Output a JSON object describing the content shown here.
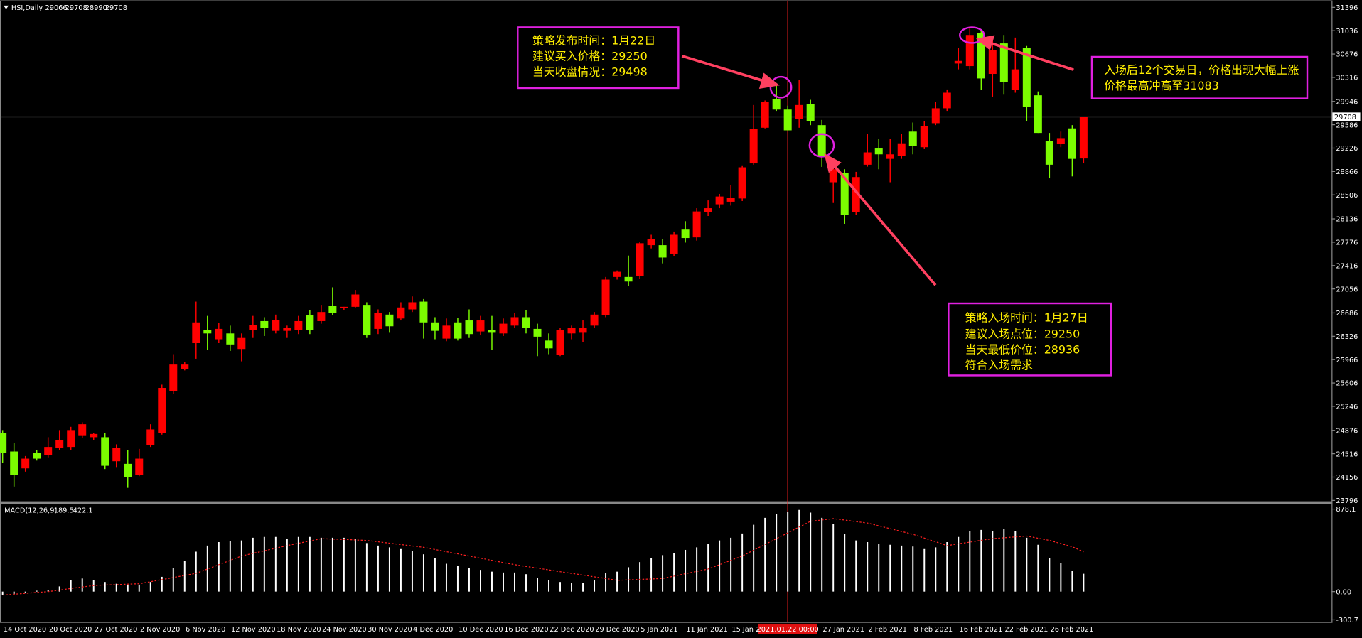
{
  "chart_data": [
    {
      "type": "candlestick",
      "title": "HSI,Daily",
      "categories": [
        "14 Oct 2020",
        null,
        null,
        null,
        "20 Oct 2020",
        null,
        null,
        null,
        "27 Oct 2020",
        null,
        null,
        null,
        "2 Nov 2020",
        null,
        null,
        null,
        "6 Nov 2020",
        null,
        null,
        null,
        "12 Nov 2020",
        null,
        null,
        null,
        "18 Nov 2020",
        null,
        null,
        null,
        "24 Nov 2020",
        null,
        null,
        null,
        "30 Nov 2020",
        null,
        null,
        null,
        "4 Dec 2020",
        null,
        null,
        null,
        "10 Dec 2020",
        null,
        null,
        null,
        "16 Dec 2020",
        null,
        null,
        null,
        "22 Dec 2020",
        null,
        null,
        null,
        "29 Dec 2020",
        null,
        null,
        null,
        "5 Jan 2021",
        null,
        null,
        null,
        "11 Jan 2021",
        null,
        null,
        null,
        "15 Jan 2021",
        null,
        null,
        null,
        null,
        null,
        null,
        null,
        "27 Jan 2021",
        null,
        null,
        null,
        "2 Feb 2021",
        null,
        null,
        null,
        "8 Feb 2021",
        null,
        null,
        null,
        "16 Feb 2021",
        null,
        null,
        null,
        "22 Feb 2021",
        null,
        null,
        null,
        "26 Feb 2021",
        null,
        null,
        null
      ],
      "open": [
        24840,
        24550,
        24290,
        24530,
        24500,
        24600,
        24620,
        24800,
        24770,
        24770,
        24400,
        24360,
        24190,
        24650,
        24840,
        25480,
        25820,
        26220,
        26420,
        26280,
        26370,
        26130,
        26420,
        26560,
        26410,
        26410,
        26420,
        26650,
        26560,
        26800,
        26760,
        26780,
        26810,
        26440,
        26660,
        26600,
        26740,
        26860,
        26540,
        26290,
        26540,
        26570,
        26400,
        26420,
        26370,
        26490,
        26620,
        26440,
        26260,
        26040,
        26370,
        26380,
        26490,
        26650,
        27240,
        27240,
        27260,
        27730,
        27730,
        27600,
        27970,
        27850,
        28240,
        28360,
        28400,
        28450,
        28990,
        29540,
        29980,
        29820,
        29680,
        29900,
        29580,
        28700,
        28840,
        28240,
        28970,
        29220,
        29060,
        29100,
        29480,
        29240,
        29610,
        29840,
        30530,
        30490,
        31000,
        30370,
        30840,
        30120,
        30770,
        30040,
        29330,
        29290,
        29530,
        29066
      ],
      "high": [
        24880,
        24680,
        24480,
        24570,
        24770,
        24880,
        24930,
        25000,
        24840,
        24840,
        24660,
        24570,
        24590,
        24970,
        25580,
        26050,
        25930,
        26860,
        26640,
        26530,
        26490,
        26370,
        26640,
        26620,
        26660,
        26490,
        26640,
        26730,
        26810,
        27080,
        26780,
        27040,
        26850,
        26740,
        26700,
        26850,
        26940,
        26900,
        26620,
        26600,
        26610,
        26740,
        26640,
        26640,
        26600,
        26690,
        26730,
        26520,
        26370,
        26460,
        26490,
        26570,
        26700,
        27240,
        27340,
        27570,
        27780,
        27890,
        27820,
        27940,
        28100,
        28300,
        28420,
        28520,
        28660,
        28960,
        29890,
        29960,
        30200,
        29880,
        30280,
        29970,
        29660,
        29060,
        28900,
        28860,
        29440,
        29370,
        29370,
        29440,
        29620,
        29640,
        29940,
        30130,
        30770,
        31083,
        31060,
        30900,
        30970,
        30930,
        30800,
        30100,
        29460,
        29480,
        29580,
        29708
      ],
      "low": [
        24370,
        24010,
        24240,
        24410,
        24460,
        24570,
        24570,
        24760,
        24730,
        24280,
        24300,
        23990,
        24170,
        24620,
        24810,
        25440,
        25800,
        25980,
        26120,
        26220,
        26100,
        25940,
        26300,
        26330,
        26370,
        26300,
        26360,
        26360,
        26520,
        26650,
        26730,
        26770,
        26300,
        26360,
        26380,
        26570,
        26700,
        26290,
        26280,
        26250,
        26260,
        26300,
        26340,
        26120,
        26330,
        26450,
        26370,
        26020,
        26050,
        26020,
        26280,
        26240,
        26460,
        26620,
        27200,
        27100,
        27210,
        27680,
        27450,
        27560,
        27770,
        27800,
        28180,
        28300,
        28340,
        28410,
        28970,
        29530,
        29800,
        29500,
        29540,
        29580,
        28936,
        28380,
        28060,
        28200,
        28940,
        28900,
        28700,
        29060,
        29130,
        29210,
        29580,
        29800,
        30440,
        30440,
        30120,
        30020,
        30050,
        30080,
        29640,
        29460,
        28760,
        29240,
        28790,
        28990
      ],
      "close": [
        24530,
        24190,
        24440,
        24440,
        24620,
        24720,
        24880,
        24970,
        24820,
        24330,
        24600,
        24160,
        24440,
        24890,
        25530,
        25890,
        25890,
        26540,
        26370,
        26440,
        26200,
        26300,
        26500,
        26460,
        26580,
        26460,
        26560,
        26420,
        26700,
        26690,
        26780,
        26970,
        26340,
        26680,
        26480,
        26770,
        26850,
        26540,
        26410,
        26490,
        26290,
        26360,
        26570,
        26380,
        26520,
        26620,
        26460,
        26320,
        26140,
        26420,
        26450,
        26460,
        26660,
        27200,
        27320,
        27170,
        27760,
        27820,
        27540,
        27890,
        27840,
        28250,
        28300,
        28480,
        28460,
        28930,
        29520,
        29940,
        29820,
        29500,
        29890,
        29640,
        29100,
        28900,
        28200,
        28780,
        29160,
        29130,
        29130,
        29300,
        29260,
        29560,
        29840,
        30080,
        30570,
        30970,
        30300,
        30740,
        30240,
        30440,
        29860,
        29460,
        28970,
        29380,
        29060,
        29708
      ],
      "up_color": "#ff0000",
      "down_color": "#7cfc00",
      "ylim": [
        23769,
        31503
      ],
      "yticks": [
        23796,
        24156,
        24516,
        24876,
        25246,
        25606,
        25966,
        26326,
        26686,
        27056,
        27416,
        27776,
        28136,
        28506,
        28866,
        29226,
        29586,
        29946,
        30316,
        30676,
        31036,
        31396
      ],
      "crosshair_label": "2021.01.22 00:00",
      "annotations": [
        {
          "lines": [
            "策略发布时间：1月22日",
            "建议买入价格：29250",
            "当天收盘情况：29498"
          ]
        },
        {
          "lines": [
            "入场后12个交易日，价格出现大幅上涨",
            "价格最高冲高至31083"
          ]
        },
        {
          "lines": [
            "策略入场时间：1月27日",
            "建议入场点位：29250",
            "当天最低价位：28936",
            "符合入场需求"
          ]
        }
      ]
    },
    {
      "type": "macd",
      "title": "MACD(12,26,9)",
      "histogram": {
        "color": "#ffffff",
        "values": [
          -37,
          -28,
          -9,
          9,
          18,
          55,
          120,
          139,
          120,
          102,
          83,
          74,
          74,
          102,
          157,
          249,
          323,
          425,
          490,
          527,
          536,
          545,
          573,
          582,
          582,
          564,
          582,
          582,
          573,
          573,
          573,
          564,
          517,
          490,
          471,
          453,
          434,
          397,
          360,
          296,
          277,
          249,
          231,
          212,
          203,
          203,
          185,
          148,
          120,
          102,
          92,
          92,
          120,
          194,
          212,
          259,
          314,
          360,
          388,
          407,
          444,
          471,
          508,
          545,
          573,
          619,
          711,
          785,
          822,
          850,
          869,
          841,
          785,
          721,
          610,
          545,
          527,
          508,
          499,
          490,
          480,
          453,
          471,
          527,
          582,
          647,
          656,
          647,
          665,
          647,
          573,
          499,
          360,
          305,
          222,
          189.5
        ]
      },
      "signal": {
        "color": "#ff2020",
        "values": [
          -37,
          -28,
          -19,
          -9,
          0,
          16,
          33,
          49,
          65,
          70,
          74,
          79,
          83,
          105,
          127,
          150,
          172,
          194,
          240,
          286,
          333,
          379,
          407,
          434,
          462,
          490,
          515,
          539,
          564,
          559,
          555,
          550,
          545,
          530,
          516,
          501,
          486,
          471,
          448,
          425,
          402,
          379,
          356,
          333,
          309,
          286,
          268,
          249,
          231,
          212,
          194,
          176,
          157,
          139,
          120,
          125,
          130,
          134,
          139,
          164,
          190,
          215,
          240,
          286,
          333,
          379,
          441,
          502,
          564,
          625,
          687,
          748,
          762,
          776,
          761,
          745,
          730,
          700,
          670,
          640,
          610,
          570,
          530,
          490,
          509,
          527,
          546,
          564,
          573,
          582,
          591,
          568,
          545,
          511,
          478,
          422.1
        ]
      },
      "ylim": [
        -323.5,
        924
      ],
      "yticks": [
        -300.7,
        {
          "value": 0,
          "label": "0.00"
        },
        878.1
      ]
    }
  ]
}
